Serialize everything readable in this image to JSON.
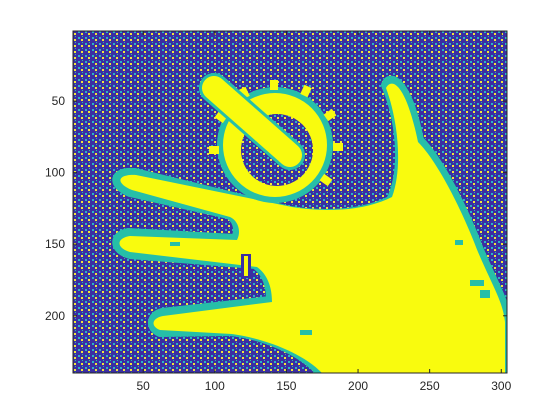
{
  "image": {
    "description_icon": "segmented-hand-with-gear-image",
    "colormap": "parula",
    "colors": {
      "background_blue": "#3b2ea3",
      "dot_cyan": "#2ab7c2",
      "dot_yellow": "#f2e838",
      "hand_yellow": "#f9fb0e",
      "edge_teal": "#26bfa8"
    }
  },
  "axes": {
    "xlim": [
      1,
      304
    ],
    "ylim": [
      1,
      240
    ],
    "y_direction": "reversed",
    "xticks": [
      {
        "value": 50,
        "label": "50"
      },
      {
        "value": 100,
        "label": "100"
      },
      {
        "value": 150,
        "label": "150"
      },
      {
        "value": 200,
        "label": "200"
      },
      {
        "value": 250,
        "label": "250"
      },
      {
        "value": 300,
        "label": "300"
      }
    ],
    "yticks": [
      {
        "value": 50,
        "label": "50"
      },
      {
        "value": 100,
        "label": "100"
      },
      {
        "value": 150,
        "label": "150"
      },
      {
        "value": 200,
        "label": "200"
      }
    ],
    "box": true,
    "grid": false
  }
}
